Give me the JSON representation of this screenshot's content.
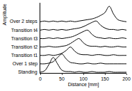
{
  "chart_data": {
    "type": "line",
    "x_label": "Distance [mm]",
    "y_label": "Amplitude",
    "x": [
      0,
      10,
      20,
      30,
      40,
      50,
      60,
      70,
      80,
      90,
      100,
      110,
      120,
      130,
      140,
      150,
      160,
      170,
      180,
      190,
      200
    ],
    "series": [
      {
        "name": "Standing",
        "color": "#000000",
        "values": [
          0.1,
          0.3,
          1.2,
          2.2,
          1.3,
          0.4,
          0.2,
          0.2,
          0.1,
          0.2,
          0.1,
          0.1,
          0.2,
          0.1,
          0.1,
          0.1,
          0.2,
          0.1,
          0.1,
          0.1,
          0.1
        ]
      },
      {
        "name": "Over 1 step",
        "color": "#000000",
        "values": [
          1.3,
          1.3,
          1.4,
          1.6,
          2.2,
          2.7,
          2.0,
          1.5,
          1.4,
          1.3,
          1.3,
          1.4,
          1.3,
          1.3,
          1.4,
          1.3,
          1.3,
          1.3,
          1.3,
          1.3,
          1.3
        ]
      },
      {
        "name": "Transition t1",
        "color": "#000000",
        "values": [
          2.5,
          2.5,
          2.6,
          2.5,
          2.6,
          2.8,
          3.2,
          3.7,
          3.1,
          2.7,
          2.6,
          2.6,
          2.5,
          2.6,
          2.6,
          2.5,
          2.5,
          2.6,
          2.5,
          2.5,
          2.5
        ]
      },
      {
        "name": "Transition t2",
        "color": "#000000",
        "values": [
          3.7,
          3.7,
          3.8,
          3.7,
          3.7,
          3.8,
          3.9,
          4.2,
          4.6,
          4.9,
          4.3,
          3.9,
          3.8,
          3.8,
          3.7,
          3.8,
          3.7,
          3.7,
          3.8,
          3.7,
          3.7
        ]
      },
      {
        "name": "Transition t3",
        "color": "#000000",
        "values": [
          4.9,
          4.9,
          5.0,
          4.9,
          5.0,
          4.9,
          5.0,
          5.1,
          5.3,
          5.6,
          5.9,
          6.1,
          5.5,
          5.1,
          5.0,
          4.9,
          5.0,
          4.9,
          4.9,
          5.0,
          4.9
        ]
      },
      {
        "name": "Transition t4",
        "color": "#000000",
        "values": [
          6.1,
          6.2,
          6.1,
          6.2,
          6.1,
          6.2,
          6.1,
          6.2,
          6.3,
          6.4,
          6.6,
          6.9,
          7.2,
          7.4,
          6.8,
          6.4,
          6.2,
          6.2,
          6.1,
          6.2,
          6.1
        ]
      },
      {
        "name": "Over 2 steps",
        "color": "#000000",
        "values": [
          7.3,
          7.4,
          7.3,
          7.4,
          7.3,
          7.4,
          7.3,
          7.4,
          7.3,
          7.4,
          7.5,
          7.6,
          7.7,
          7.9,
          8.2,
          8.6,
          9.5,
          8.4,
          7.6,
          7.4,
          7.3
        ]
      }
    ],
    "xlim": [
      0,
      200
    ],
    "xticks": [
      0,
      50,
      100,
      150,
      200
    ],
    "ylim": [
      0,
      10
    ],
    "yticks": [],
    "tick_labels": "x",
    "grid": false
  }
}
